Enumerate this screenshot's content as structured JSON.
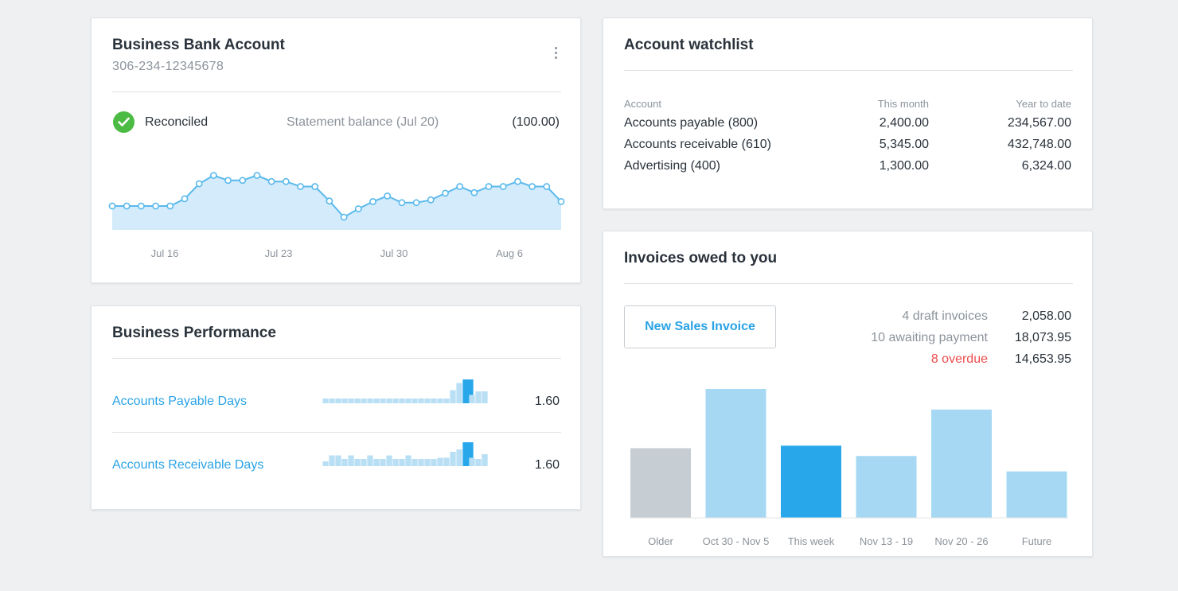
{
  "bank_account": {
    "title": "Business Bank Account",
    "account_number": "306-234-12345678",
    "status": "Reconciled",
    "statement_label": "Statement balance (Jul 20)",
    "statement_value": "(100.00)",
    "x_labels": [
      "Jul 16",
      "Jul 23",
      "Jul 30",
      "Aug 6"
    ],
    "series": [
      0.2,
      0.2,
      0.2,
      0.2,
      0.2,
      0.33,
      0.6,
      0.75,
      0.66,
      0.66,
      0.75,
      0.64,
      0.64,
      0.55,
      0.55,
      0.29,
      0.0,
      0.15,
      0.28,
      0.38,
      0.26,
      0.26,
      0.31,
      0.43,
      0.55,
      0.44,
      0.55,
      0.55,
      0.64,
      0.55,
      0.55,
      0.28
    ]
  },
  "performance": {
    "title": "Business Performance",
    "rows": [
      {
        "label": "Accounts Payable Days",
        "value": "1.60",
        "bars": [
          0.2,
          0.2,
          0.2,
          0.2,
          0.2,
          0.2,
          0.2,
          0.2,
          0.2,
          0.2,
          0.2,
          0.2,
          0.2,
          0.2,
          0.2,
          0.2,
          0.2,
          0.2,
          0.2,
          0.2,
          0.55,
          0.85,
          1.0,
          0.35,
          0.5,
          0.5
        ],
        "highlight": 22
      },
      {
        "label": "Accounts Receivable Days",
        "value": "1.60",
        "bars": [
          0.2,
          0.45,
          0.45,
          0.3,
          0.45,
          0.3,
          0.3,
          0.45,
          0.3,
          0.3,
          0.45,
          0.3,
          0.3,
          0.45,
          0.3,
          0.3,
          0.3,
          0.3,
          0.35,
          0.35,
          0.6,
          0.7,
          1.0,
          0.35,
          0.3,
          0.5
        ],
        "highlight": 22
      }
    ]
  },
  "watchlist": {
    "title": "Account watchlist",
    "headers": {
      "account": "Account",
      "this_month": "This month",
      "ytd": "Year to date"
    },
    "rows": [
      {
        "name": "Accounts payable (800)",
        "this_month": "2,400.00",
        "ytd": "234,567.00"
      },
      {
        "name": "Accounts receivable (610)",
        "this_month": "5,345.00",
        "ytd": "432,748.00"
      },
      {
        "name": "Advertising (400)",
        "this_month": "1,300.00",
        "ytd": "6,324.00"
      }
    ]
  },
  "invoices": {
    "title": "Invoices owed to you",
    "new_button": "New Sales Invoice",
    "summary": [
      {
        "label": "4 draft invoices",
        "value": "2,058.00",
        "overdue": false
      },
      {
        "label": "10 awaiting payment",
        "value": "18,073.95",
        "overdue": false
      },
      {
        "label": "8 overdue",
        "value": "14,653.95",
        "overdue": true
      }
    ],
    "chart_data": {
      "type": "bar",
      "categories": [
        "Older",
        "Oct 30 - Nov 5",
        "This week",
        "Nov 13 - 19",
        "Nov 20 - 26",
        "Future"
      ],
      "values": [
        54,
        100,
        56,
        48,
        84,
        36
      ],
      "colors": [
        "#c6cdd3",
        "#a6d8f4",
        "#28a8ea",
        "#a6d8f4",
        "#a6d8f4",
        "#a6d8f4"
      ]
    }
  },
  "colors": {
    "accent": "#2aa3e6",
    "reconciled": "#4cbb43",
    "overdue": "#ef4c4c",
    "line": "#5ab9ec",
    "area": "#d3ebfa"
  }
}
